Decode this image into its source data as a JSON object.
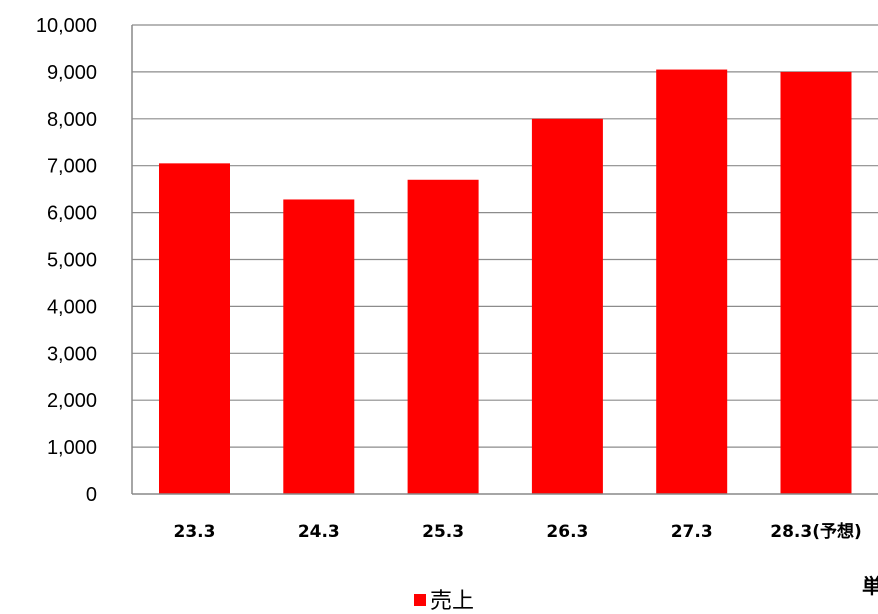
{
  "chart_data": {
    "type": "bar",
    "categories": [
      "23.3",
      "24.3",
      "25.3",
      "26.3",
      "27.3",
      "28.3(予想)"
    ],
    "series": [
      {
        "name": "売上",
        "values": [
          7050,
          6280,
          6700,
          8000,
          9050,
          9000
        ],
        "color": "#ff0000"
      }
    ],
    "title": "",
    "xlabel": "",
    "ylabel": "",
    "ylim": [
      0,
      10000
    ],
    "yticks": [
      0,
      1000,
      2000,
      3000,
      4000,
      5000,
      6000,
      7000,
      8000,
      9000,
      10000
    ],
    "ytick_labels": [
      "0",
      "1,000",
      "2,000",
      "3,000",
      "4,000",
      "5,000",
      "6,000",
      "7,000",
      "8,000",
      "9,000",
      "10,000"
    ],
    "grid": true,
    "legend": {
      "position": "bottom",
      "entries": [
        "売上"
      ]
    },
    "unit_note": "単"
  }
}
